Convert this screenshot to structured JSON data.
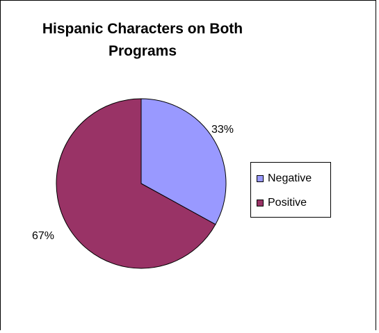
{
  "chart_data": {
    "type": "pie",
    "title": "Hispanic Characters on Both Programs",
    "categories": [
      "Negative",
      "Positive"
    ],
    "values": [
      33,
      67
    ],
    "labels": [
      "33%",
      "67%"
    ],
    "colors": [
      "#9999FF",
      "#993366"
    ],
    "legend_position": "right"
  }
}
